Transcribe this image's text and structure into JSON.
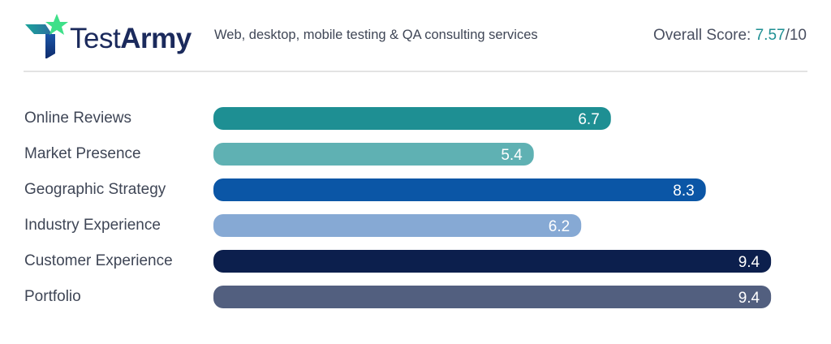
{
  "header": {
    "brand_name_part1": "Test",
    "brand_name_part2": "Army",
    "tagline": "Web, desktop, mobile testing & QA consulting services",
    "score_label": "Overall Score: ",
    "score_value": "7.57",
    "score_suffix": "/10"
  },
  "colors": {
    "accent": "#1e8f93",
    "text": "#3f4656",
    "divider": "#e3e3e3"
  },
  "chart_data": {
    "type": "bar",
    "orientation": "horizontal",
    "title": "",
    "xlabel": "",
    "ylabel": "",
    "xlim": [
      0,
      10
    ],
    "grid": false,
    "categories": [
      "Online Reviews",
      "Market Presence",
      "Geographic Strategy",
      "Industry Experience",
      "Customer Experience",
      "Portfolio"
    ],
    "values": [
      6.7,
      5.4,
      8.3,
      6.2,
      9.4,
      9.4
    ],
    "data_labels": [
      "6.7",
      "5.4",
      "8.3",
      "6.2",
      "9.4",
      "9.4"
    ],
    "bar_colors": [
      "#1e8f93",
      "#5fb1b3",
      "#0b56a6",
      "#86a9d4",
      "#0c1f4d",
      "#525f7f"
    ]
  }
}
